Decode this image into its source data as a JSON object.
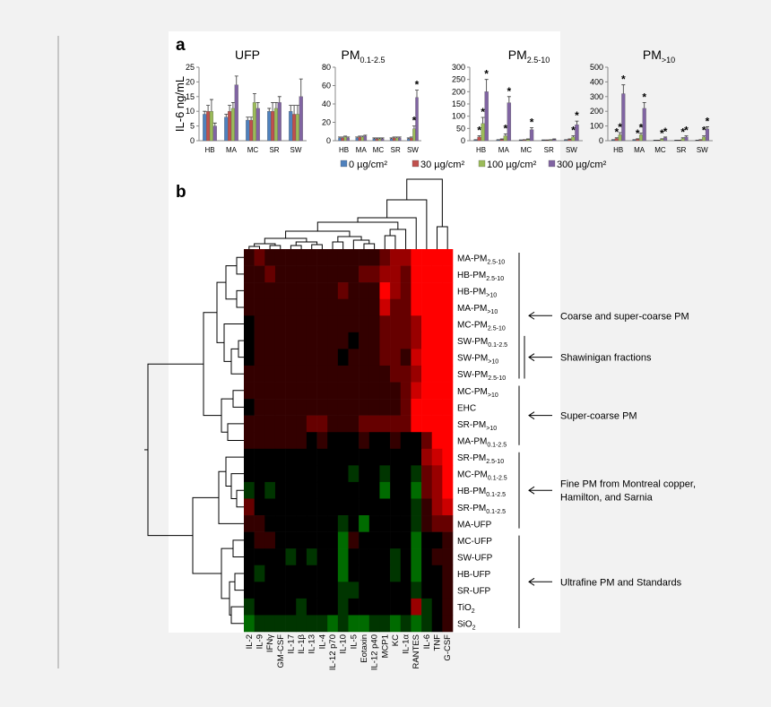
{
  "panels": [
    "a",
    "b"
  ],
  "y_label": "IL-6 ng/mL",
  "legend": [
    {
      "name": "0 µg/cm²",
      "color": "#4f81bd"
    },
    {
      "name": "30 µg/cm²",
      "color": "#c0504d"
    },
    {
      "name": "100 µg/cm²",
      "color": "#9bbb59"
    },
    {
      "name": "300 µg/cm²",
      "color": "#8064a2"
    }
  ],
  "chart_data": [
    {
      "type": "bar",
      "title": "UFP",
      "categories": [
        "HB",
        "MA",
        "MC",
        "SR",
        "SW"
      ],
      "ylim": [
        0,
        25
      ],
      "yticks": [
        0,
        5,
        10,
        15,
        20,
        25
      ],
      "series": [
        {
          "values": [
            9,
            8,
            7,
            10,
            10
          ],
          "errors": [
            1,
            1,
            1,
            1,
            2
          ]
        },
        {
          "values": [
            10,
            10,
            7,
            10,
            9
          ],
          "errors": [
            2,
            2,
            1,
            3,
            3
          ]
        },
        {
          "values": [
            10,
            11,
            13,
            11,
            9
          ],
          "errors": [
            4,
            2,
            3,
            2,
            3
          ]
        },
        {
          "values": [
            5,
            19,
            11,
            13,
            15
          ],
          "errors": [
            1,
            3,
            2,
            2,
            6
          ]
        }
      ],
      "annotations": []
    },
    {
      "type": "bar",
      "title": "PM",
      "title_sub": "0.1-2.5",
      "categories": [
        "HB",
        "MA",
        "MC",
        "SR",
        "SW"
      ],
      "ylim": [
        0,
        80
      ],
      "yticks": [
        0,
        20,
        40,
        60,
        80
      ],
      "series": [
        {
          "values": [
            3,
            3,
            2,
            2,
            2
          ],
          "errors": [
            1,
            1,
            1,
            1,
            1
          ]
        },
        {
          "values": [
            3,
            4,
            2,
            3,
            3
          ],
          "errors": [
            1,
            1,
            1,
            1,
            1
          ]
        },
        {
          "values": [
            4,
            4,
            2,
            3,
            13
          ],
          "errors": [
            1,
            1,
            1,
            1,
            3
          ]
        },
        {
          "values": [
            3,
            5,
            2,
            3,
            47
          ],
          "errors": [
            1,
            1,
            1,
            1,
            8
          ]
        }
      ],
      "annotations": [
        {
          "text": "*",
          "series": 2,
          "category": 4
        },
        {
          "text": "*",
          "series": 3,
          "category": 4
        }
      ]
    },
    {
      "type": "bar",
      "title": "PM",
      "title_sub": "2.5-10",
      "categories": [
        "HB",
        "MA",
        "MC",
        "SR",
        "SW"
      ],
      "ylim": [
        0,
        300
      ],
      "yticks": [
        0,
        50,
        100,
        150,
        200,
        250,
        300
      ],
      "series": [
        {
          "values": [
            3,
            3,
            2,
            2,
            3
          ],
          "errors": [
            1,
            1,
            1,
            1,
            1
          ]
        },
        {
          "values": [
            15,
            5,
            3,
            2,
            5
          ],
          "errors": [
            5,
            2,
            1,
            1,
            2
          ]
        },
        {
          "values": [
            70,
            20,
            5,
            3,
            15
          ],
          "errors": [
            25,
            8,
            2,
            1,
            5
          ]
        },
        {
          "values": [
            200,
            155,
            45,
            5,
            65
          ],
          "errors": [
            50,
            25,
            8,
            2,
            15
          ]
        }
      ],
      "annotations": [
        {
          "text": "*",
          "series": 1,
          "category": 0
        },
        {
          "text": "*",
          "series": 2,
          "category": 0
        },
        {
          "text": "*",
          "series": 3,
          "category": 0
        },
        {
          "text": "*",
          "series": 2,
          "category": 1
        },
        {
          "text": "*",
          "series": 3,
          "category": 1
        },
        {
          "text": "*",
          "series": 3,
          "category": 2
        },
        {
          "text": "*",
          "series": 2,
          "category": 4
        },
        {
          "text": "*",
          "series": 3,
          "category": 4
        }
      ]
    },
    {
      "type": "bar",
      "title": "PM",
      "title_sub": ">10",
      "categories": [
        "HB",
        "MA",
        "MC",
        "SR",
        "SW"
      ],
      "ylim": [
        0,
        500
      ],
      "yticks": [
        0,
        100,
        200,
        300,
        400,
        500
      ],
      "series": [
        {
          "values": [
            5,
            5,
            3,
            3,
            3
          ],
          "errors": [
            2,
            2,
            1,
            1,
            1
          ]
        },
        {
          "values": [
            15,
            10,
            3,
            3,
            5
          ],
          "errors": [
            5,
            3,
            1,
            1,
            2
          ]
        },
        {
          "values": [
            40,
            40,
            10,
            15,
            25
          ],
          "errors": [
            15,
            12,
            3,
            5,
            8
          ]
        },
        {
          "values": [
            320,
            220,
            20,
            25,
            80
          ],
          "errors": [
            60,
            40,
            5,
            8,
            15
          ]
        }
      ],
      "annotations": [
        {
          "text": "*",
          "series": 1,
          "category": 0
        },
        {
          "text": "*",
          "series": 2,
          "category": 0
        },
        {
          "text": "*",
          "series": 3,
          "category": 0
        },
        {
          "text": "*",
          "series": 1,
          "category": 1
        },
        {
          "text": "*",
          "series": 2,
          "category": 1
        },
        {
          "text": "*",
          "series": 3,
          "category": 1
        },
        {
          "text": "*",
          "series": 2,
          "category": 2
        },
        {
          "text": "*",
          "series": 3,
          "category": 2
        },
        {
          "text": "*",
          "series": 2,
          "category": 3
        },
        {
          "text": "*",
          "series": 3,
          "category": 3
        },
        {
          "text": "*",
          "series": 2,
          "category": 4
        },
        {
          "text": "*",
          "series": 3,
          "category": 4
        }
      ]
    },
    {
      "type": "heatmap",
      "columns": [
        "IL-2",
        "IL-9",
        "IFNγ",
        "GM-CSF",
        "IL-17",
        "IL-1β",
        "IL-13",
        "IL-4",
        "IL-12 p70",
        "IL-10",
        "IL-5",
        "Eotaxin",
        "IL-12 p40",
        "MCP1",
        "KC",
        "IL-1α",
        "RANTES",
        "IL-6",
        "TNF",
        "G-CSF"
      ],
      "rows": [
        {
          "text": "MA-PM",
          "sub": "2.5-10"
        },
        {
          "text": "HB-PM",
          "sub": "2.5-10"
        },
        {
          "text": "HB-PM",
          "sub": ">10"
        },
        {
          "text": "MA-PM",
          "sub": ">10"
        },
        {
          "text": "MC-PM",
          "sub": "2.5-10"
        },
        {
          "text": "SW-PM",
          "sub": "0.1-2.5"
        },
        {
          "text": "SW-PM",
          "sub": ">10"
        },
        {
          "text": "SW-PM",
          "sub": "2.5-10"
        },
        {
          "text": "MC-PM",
          "sub": ">10"
        },
        {
          "text": "EHC"
        },
        {
          "text": "SR-PM",
          "sub": ">10"
        },
        {
          "text": "MA-PM",
          "sub": "0.1-2.5"
        },
        {
          "text": "SR-PM",
          "sub": "2.5-10"
        },
        {
          "text": "MC-PM",
          "sub": "0.1-2.5"
        },
        {
          "text": "HB-PM",
          "sub": "0.1-2.5"
        },
        {
          "text": "SR-PM",
          "sub": "0.1-2.5"
        },
        {
          "text": "MA-UFP"
        },
        {
          "text": "MC-UFP"
        },
        {
          "text": "SW-UFP"
        },
        {
          "text": "HB-UFP"
        },
        {
          "text": "SR-UFP"
        },
        {
          "text": "TiO",
          "sub": "2"
        },
        {
          "text": "SiO",
          "sub": "2"
        }
      ],
      "values": [
        [
          1,
          2,
          1,
          1,
          1,
          1,
          1,
          1,
          1,
          1,
          1,
          1,
          1,
          2,
          3,
          3,
          5,
          5,
          5,
          5
        ],
        [
          1,
          1,
          2,
          1,
          1,
          1,
          1,
          1,
          1,
          1,
          1,
          2,
          2,
          3,
          3,
          2,
          5,
          5,
          5,
          5
        ],
        [
          1,
          1,
          1,
          1,
          1,
          1,
          1,
          1,
          1,
          2,
          1,
          1,
          1,
          5,
          3,
          2,
          5,
          5,
          5,
          5
        ],
        [
          1,
          1,
          1,
          1,
          1,
          1,
          1,
          1,
          1,
          1,
          1,
          1,
          1,
          4,
          2,
          2,
          5,
          5,
          5,
          5
        ],
        [
          0,
          1,
          1,
          1,
          1,
          1,
          1,
          1,
          1,
          1,
          1,
          1,
          1,
          2,
          2,
          2,
          3,
          5,
          5,
          5
        ],
        [
          0,
          1,
          1,
          1,
          1,
          1,
          1,
          1,
          1,
          1,
          0,
          1,
          1,
          2,
          2,
          2,
          3,
          5,
          5,
          5
        ],
        [
          0,
          1,
          1,
          1,
          1,
          1,
          1,
          1,
          1,
          0,
          1,
          1,
          1,
          2,
          2,
          1,
          4,
          5,
          5,
          5
        ],
        [
          1,
          1,
          1,
          1,
          1,
          1,
          1,
          1,
          1,
          1,
          1,
          1,
          1,
          1,
          2,
          2,
          3,
          5,
          5,
          5
        ],
        [
          1,
          1,
          1,
          1,
          1,
          1,
          1,
          1,
          1,
          1,
          1,
          1,
          1,
          1,
          1,
          2,
          4,
          5,
          5,
          5
        ],
        [
          0,
          1,
          1,
          1,
          1,
          1,
          1,
          1,
          1,
          1,
          1,
          1,
          1,
          1,
          1,
          2,
          5,
          5,
          5,
          5
        ],
        [
          1,
          1,
          1,
          1,
          1,
          1,
          2,
          2,
          1,
          1,
          1,
          2,
          2,
          2,
          2,
          2,
          5,
          5,
          5,
          5
        ],
        [
          1,
          1,
          1,
          1,
          1,
          1,
          0,
          1,
          0,
          0,
          0,
          1,
          0,
          0,
          1,
          0,
          0,
          2,
          5,
          5
        ],
        [
          0,
          0,
          0,
          0,
          0,
          0,
          0,
          0,
          0,
          0,
          0,
          0,
          0,
          0,
          0,
          0,
          0,
          3,
          4,
          5
        ],
        [
          0,
          0,
          0,
          0,
          0,
          0,
          0,
          0,
          0,
          0,
          -1,
          0,
          0,
          -1,
          0,
          0,
          -1,
          2,
          3,
          5
        ],
        [
          -1,
          0,
          -1,
          0,
          0,
          0,
          0,
          0,
          0,
          0,
          0,
          0,
          0,
          -2,
          0,
          0,
          -2,
          2,
          3,
          5
        ],
        [
          2,
          0,
          0,
          0,
          0,
          0,
          0,
          0,
          0,
          0,
          0,
          0,
          0,
          0,
          0,
          0,
          -1,
          1,
          3,
          4
        ],
        [
          1,
          1,
          0,
          0,
          0,
          0,
          0,
          0,
          0,
          -1,
          0,
          -2,
          0,
          0,
          0,
          0,
          -1,
          1,
          2,
          2
        ],
        [
          0,
          1,
          1,
          0,
          0,
          0,
          0,
          0,
          0,
          -2,
          1,
          0,
          0,
          0,
          0,
          0,
          -2,
          0,
          0,
          1
        ],
        [
          0,
          0,
          0,
          0,
          -1,
          0,
          -1,
          0,
          0,
          -2,
          0,
          0,
          0,
          0,
          -1,
          0,
          -2,
          0,
          1,
          1
        ],
        [
          0,
          -1,
          0,
          0,
          0,
          0,
          0,
          0,
          0,
          -2,
          0,
          0,
          0,
          0,
          -1,
          0,
          -2,
          0,
          0,
          1
        ],
        [
          0,
          0,
          0,
          0,
          0,
          0,
          0,
          0,
          0,
          -1,
          -1,
          0,
          0,
          0,
          0,
          0,
          -1,
          0,
          0,
          1
        ],
        [
          -1,
          0,
          0,
          0,
          0,
          -1,
          0,
          0,
          0,
          -1,
          0,
          0,
          0,
          0,
          0,
          0,
          3,
          -1,
          0,
          1
        ],
        [
          -2,
          -1,
          -1,
          -1,
          -1,
          -1,
          -1,
          -1,
          -2,
          -1,
          -2,
          -2,
          -1,
          -1,
          -2,
          -1,
          -2,
          -1,
          0,
          1
        ]
      ],
      "vlim": [
        -3,
        5
      ],
      "colors": {
        "low": "#00a000",
        "mid": "#000000",
        "high": "#ff0000"
      },
      "groups": [
        {
          "lines": [
            "Coarse and super-coarse PM"
          ],
          "from": 0,
          "to": 7
        },
        {
          "lines": [
            "Shawinigan fractions"
          ],
          "from": 5,
          "to": 7
        },
        {
          "lines": [
            "Super-coarse PM"
          ],
          "from": 8,
          "to": 11
        },
        {
          "lines": [
            "Fine PM from Montreal copper,",
            "Hamilton, and Sarnia"
          ],
          "from": 12,
          "to": 16
        },
        {
          "lines": [
            "Ultrafine PM and Standards"
          ],
          "from": 17,
          "to": 22
        }
      ]
    }
  ]
}
